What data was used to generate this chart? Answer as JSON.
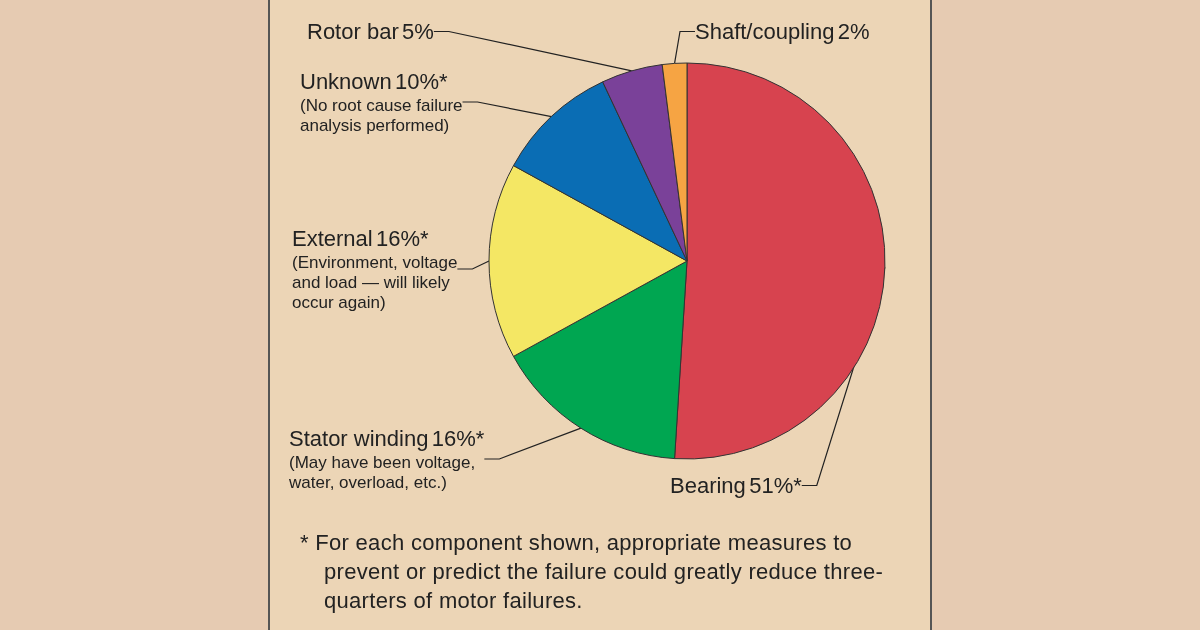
{
  "chart_data": {
    "type": "pie",
    "categories": [
      "Bearing",
      "Stator winding",
      "External",
      "Unknown",
      "Rotor bar",
      "Shaft/coupling"
    ],
    "values": [
      51,
      16,
      16,
      10,
      5,
      2
    ],
    "colors": [
      "#d7434f",
      "#00a651",
      "#f4e764",
      "#0a6db4",
      "#7a4199",
      "#f6a443"
    ],
    "value_labels": [
      "51%*",
      "16%*",
      "16%*",
      "10%*",
      "5%",
      "2%"
    ],
    "annotations": [
      {
        "text": "(May have been voltage, water, overload, etc.)",
        "x": "Stator winding"
      },
      {
        "text": "(Environment, voltage and load — will likely occur again)",
        "x": "External"
      },
      {
        "text": "(No root cause failure analysis performed)",
        "x": "Unknown"
      },
      "* For each component shown, appropriate measures to prevent or predict the failure could greatly reduce three-quarters of motor failures."
    ]
  }
}
